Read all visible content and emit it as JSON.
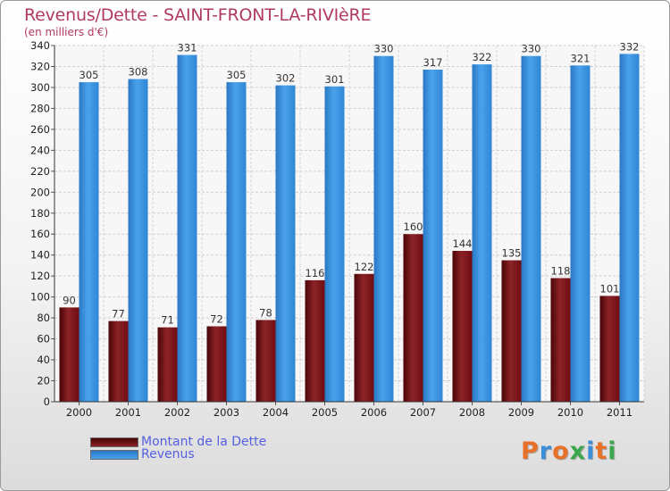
{
  "header": {
    "title": "Revenus/Dette - SAINT-FRONT-LA-RIVIèRE",
    "subtitle": "(en milliers d'€)"
  },
  "logo": {
    "text": "Proxiti",
    "colors": [
      "#e8712a",
      "#3a8fd8",
      "#e8712a",
      "#3aa84a",
      "#3a8fd8",
      "#e8712a",
      "#3aa84a"
    ]
  },
  "chart_data": {
    "type": "bar",
    "categories": [
      "2000",
      "2001",
      "2002",
      "2003",
      "2004",
      "2005",
      "2006",
      "2007",
      "2008",
      "2009",
      "2010",
      "2011"
    ],
    "series": [
      {
        "name": "Montant de la Dette",
        "color": "#8a1c20",
        "values": [
          90,
          77,
          71,
          72,
          78,
          116,
          122,
          160,
          144,
          135,
          118,
          101
        ]
      },
      {
        "name": "Revenus",
        "color": "#3c93df",
        "values": [
          305,
          308,
          331,
          305,
          302,
          301,
          330,
          317,
          322,
          330,
          321,
          332
        ]
      }
    ],
    "ylim": [
      0,
      340
    ],
    "ytick_step": 20,
    "grid": true,
    "legend_position": "bottom-left"
  }
}
